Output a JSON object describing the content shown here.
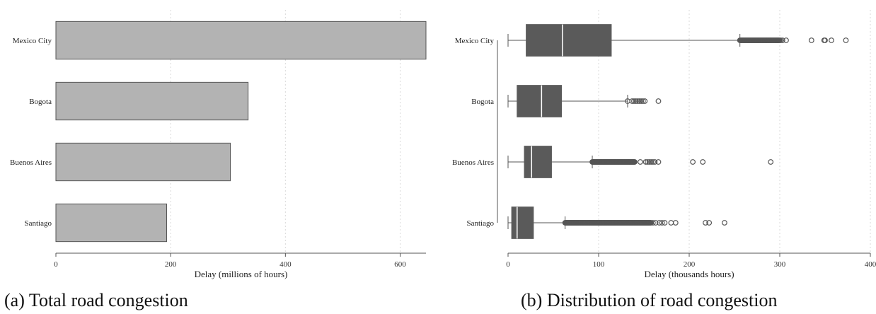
{
  "chart_data": [
    {
      "type": "bar",
      "orientation": "horizontal",
      "categories": [
        "Mexico City",
        "Bogota",
        "Buenos Aires",
        "Santiago"
      ],
      "values": [
        645,
        335,
        304,
        193
      ],
      "xlabel": "Delay (millions of hours)",
      "ylabel": "",
      "xlim": [
        0,
        645
      ],
      "xticks": [
        0,
        200,
        400,
        600
      ],
      "grid": "vertical dotted",
      "colors": {
        "bar": "#b3b3b3",
        "bar_edge": "#555555",
        "axis": "#555555",
        "grid": "#d9d9d9"
      },
      "caption": "(a)  Total road congestion"
    },
    {
      "type": "box",
      "orientation": "horizontal",
      "categories": [
        "Mexico City",
        "Bogota",
        "Buenos Aires",
        "Santiago"
      ],
      "series": [
        {
          "category": "Mexico City",
          "min": 0,
          "q1": 20,
          "median": 60,
          "q3": 114,
          "max": 256,
          "outlier_band": [
            256,
            300
          ],
          "outliers": [
            285,
            290,
            296,
            298,
            301,
            303,
            307,
            335,
            349,
            350,
            357,
            373
          ]
        },
        {
          "category": "Bogota",
          "min": 0,
          "q1": 10,
          "median": 37,
          "q3": 59,
          "max": 132,
          "outlier_band": [],
          "outliers": [
            132,
            137,
            139,
            141,
            143,
            145,
            147,
            149,
            151,
            166
          ]
        },
        {
          "category": "Buenos Aires",
          "min": 0,
          "q1": 18,
          "median": 26,
          "q3": 48,
          "max": 93,
          "outlier_band": [
            93,
            140
          ],
          "outliers": [
            146,
            152,
            154,
            156,
            158,
            160,
            162,
            166,
            204,
            215,
            290
          ]
        },
        {
          "category": "Santiago",
          "min": 0,
          "q1": 4,
          "median": 10,
          "q3": 28,
          "max": 63,
          "outlier_band": [
            63,
            158
          ],
          "outliers": [
            160,
            163,
            167,
            170,
            173,
            180,
            185,
            218,
            222,
            239
          ]
        }
      ],
      "xlabel": "Delay (thousands hours)",
      "ylabel": "",
      "xlim": [
        0,
        400
      ],
      "xticks": [
        0,
        100,
        200,
        300,
        400
      ],
      "grid": "vertical dotted",
      "colors": {
        "box": "#5a5a5a",
        "whisker": "#555555",
        "outlier": "#555555",
        "axis": "#555555",
        "grid": "#d9d9d9"
      },
      "caption": "(b)  Distribution of road congestion"
    }
  ]
}
